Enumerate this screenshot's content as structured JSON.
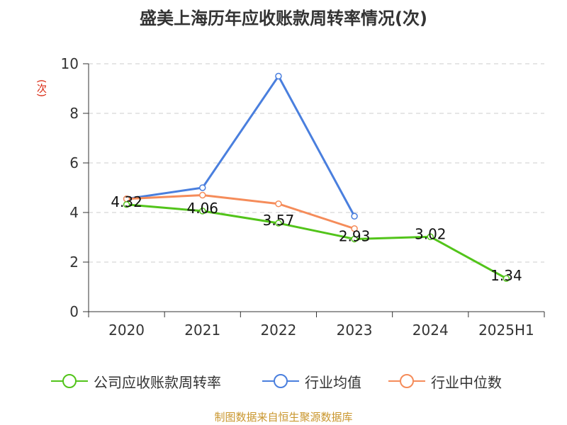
{
  "chart_data": {
    "type": "line",
    "title": "盛美上海历年应收账款周转率情况(次)",
    "ylabel": "(次)",
    "categories": [
      "2020",
      "2021",
      "2022",
      "2023",
      "2024",
      "2025H1"
    ],
    "ylim": [
      0,
      10
    ],
    "yticks": [
      0,
      2,
      4,
      6,
      8,
      10
    ],
    "grid": true,
    "legend_position": "bottom",
    "series": [
      {
        "name": "公司应收账款周转率",
        "color": "#52c41a",
        "values": [
          4.32,
          4.06,
          3.57,
          2.93,
          3.02,
          1.34
        ],
        "data_labels": [
          "4.32",
          "4.06",
          "3.57",
          "2.93",
          "3.02",
          "1.34"
        ]
      },
      {
        "name": "行业均值",
        "color": "#4a7fde",
        "values": [
          4.55,
          5.0,
          9.5,
          3.85,
          null,
          null
        ]
      },
      {
        "name": "行业中位数",
        "color": "#f58c5a",
        "values": [
          4.55,
          4.7,
          4.35,
          3.35,
          null,
          null
        ]
      }
    ]
  },
  "source": "制图数据来自恒生聚源数据库"
}
